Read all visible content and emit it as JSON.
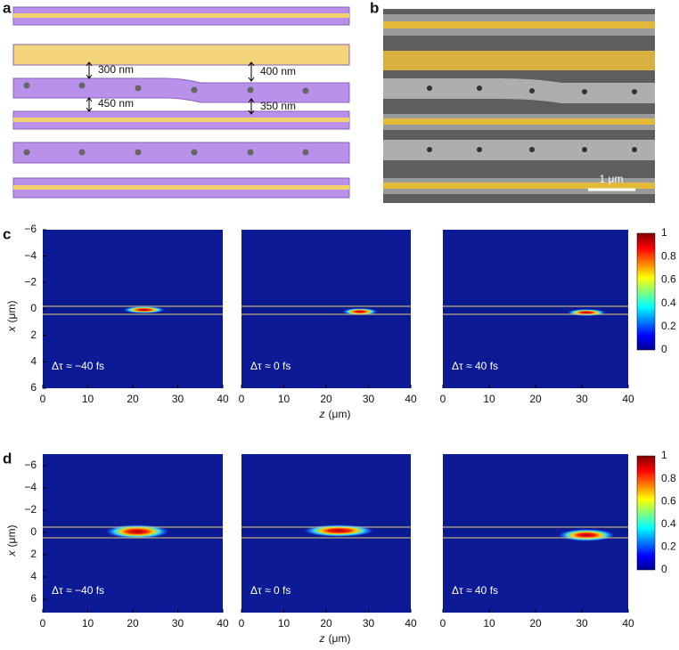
{
  "panel_a": {
    "label": "a",
    "gaps": [
      "300 nm",
      "400 nm",
      "450 nm",
      "350 nm"
    ]
  },
  "panel_b": {
    "label": "b",
    "scale_bar": "1 μm"
  },
  "panel_c": {
    "label": "c",
    "y_label_var": "x",
    "y_label_unit": "(μm)",
    "x_label_var": "z",
    "x_label_unit": "(μm)",
    "yticks": [
      "−6",
      "−4",
      "−2",
      "0",
      "2",
      "4",
      "6"
    ],
    "xticks": [
      "0",
      "10",
      "20",
      "30",
      "40"
    ],
    "delays": [
      "Δτ ≈ −40 fs",
      "Δτ ≈ 0 fs",
      "Δτ ≈ 40 fs"
    ],
    "colorbar_ticks": [
      "1",
      "0.8",
      "0.6",
      "0.4",
      "0.2",
      "0"
    ]
  },
  "panel_d": {
    "label": "d",
    "y_label_var": "x",
    "y_label_unit": "(μm)",
    "x_label_var": "z",
    "x_label_unit": "(μm)",
    "yticks": [
      "−6",
      "−4",
      "−2",
      "0",
      "2",
      "4",
      "6"
    ],
    "xticks": [
      "0",
      "10",
      "20",
      "30",
      "40"
    ],
    "delays": [
      "Δτ ≈ −40 fs",
      "Δτ ≈ 0 fs",
      "Δτ ≈ 40 fs"
    ],
    "colorbar_ticks": [
      "1",
      "0.8",
      "0.6",
      "0.4",
      "0.2",
      "0"
    ]
  }
}
